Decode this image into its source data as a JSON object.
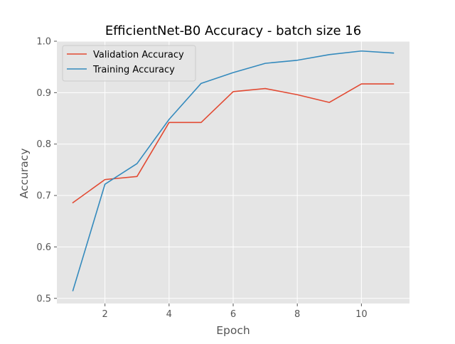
{
  "chart_data": {
    "type": "line",
    "title": "EfficientNet-B0 Accuracy - batch size 16",
    "xlabel": "Epoch",
    "ylabel": "Accuracy",
    "x": [
      1,
      2,
      3,
      4,
      5,
      6,
      7,
      8,
      9,
      10,
      11
    ],
    "xlim": [
      0.5,
      11.5
    ],
    "ylim": [
      0.49,
      1.0
    ],
    "xticks": [
      2,
      4,
      6,
      8,
      10
    ],
    "yticks": [
      0.5,
      0.6,
      0.7,
      0.8,
      0.9,
      1.0
    ],
    "xtick_labels": [
      "2",
      "4",
      "6",
      "8",
      "10"
    ],
    "ytick_labels": [
      "0.5",
      "0.6",
      "0.7",
      "0.8",
      "0.9",
      "1.0"
    ],
    "grid": true,
    "legend_position": "top-left",
    "series": [
      {
        "name": "Validation Accuracy",
        "color": "#e24a33",
        "values": [
          0.686,
          0.731,
          0.737,
          0.842,
          0.842,
          0.902,
          0.908,
          0.896,
          0.881,
          0.917,
          0.917
        ]
      },
      {
        "name": "Training Accuracy",
        "color": "#348abd",
        "values": [
          0.515,
          0.722,
          0.762,
          0.848,
          0.918,
          0.939,
          0.957,
          0.963,
          0.974,
          0.981,
          0.977
        ]
      }
    ]
  }
}
